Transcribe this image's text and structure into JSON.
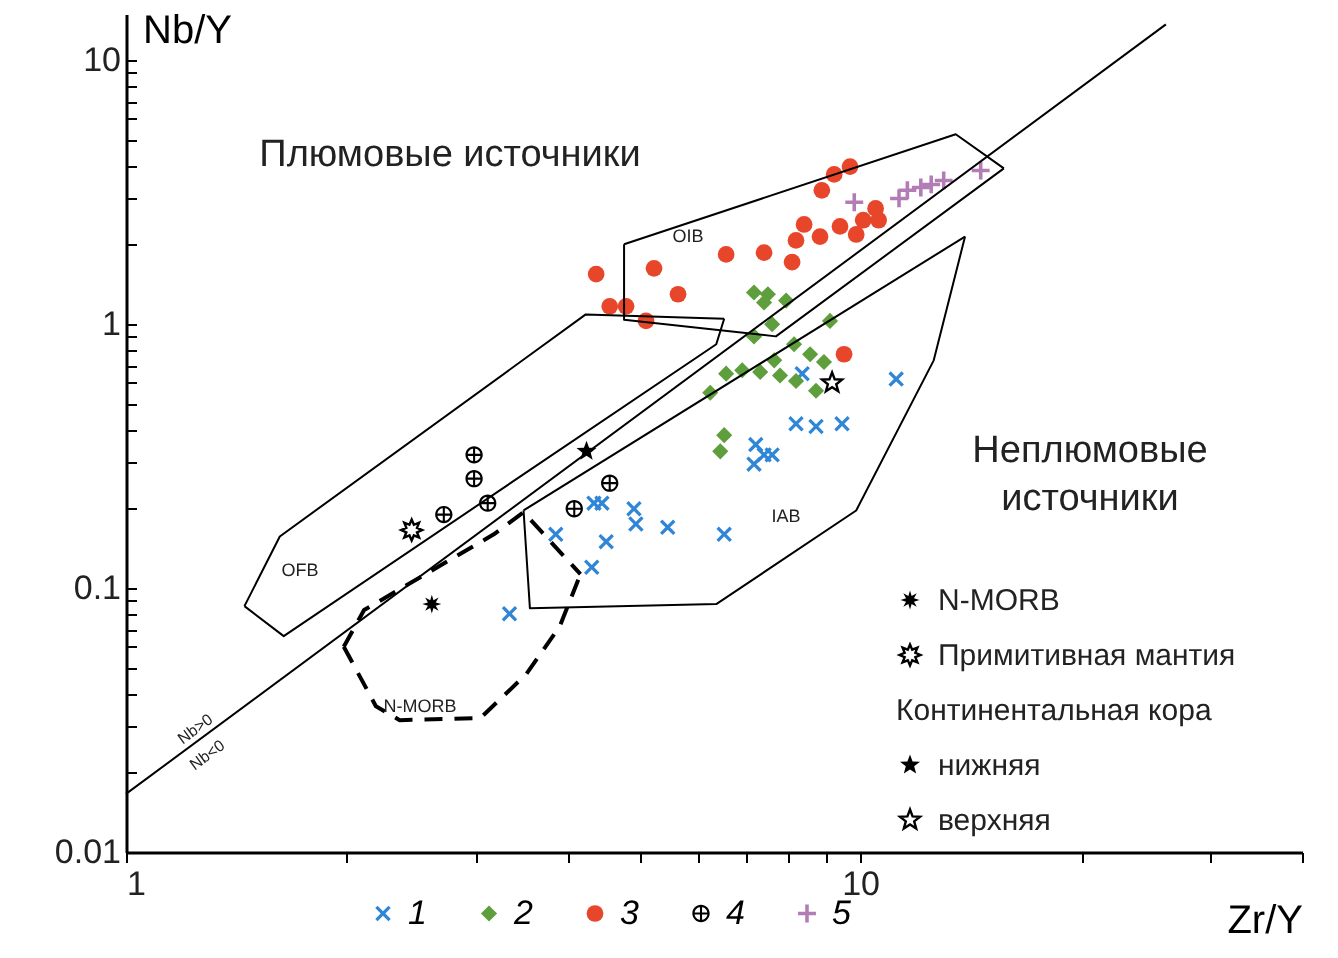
{
  "chart_data": {
    "type": "scatter",
    "xlabel": "Zr/Y",
    "ylabel": "Nb/Y",
    "log": "xy",
    "grid": false,
    "legend": "bottom",
    "xlim": [
      1,
      40
    ],
    "ylim": [
      0.01,
      15
    ],
    "xticks": [
      1,
      {
        "value": 2,
        "label": null
      },
      {
        "value": 3,
        "label": null
      },
      {
        "value": 4,
        "label": null
      },
      {
        "value": 5,
        "label": null
      },
      {
        "value": 6,
        "label": null
      },
      {
        "value": 7,
        "label": null
      },
      {
        "value": 8,
        "label": null
      },
      {
        "value": 9,
        "label": null
      },
      10,
      {
        "value": 20,
        "label": null
      },
      {
        "value": 30,
        "label": null
      },
      {
        "value": 40,
        "label": null
      }
    ],
    "yticks": [
      0.01,
      {
        "value": 0.02,
        "label": null
      },
      {
        "value": 0.03,
        "label": null
      },
      {
        "value": 0.04,
        "label": null
      },
      {
        "value": 0.05,
        "label": null
      },
      {
        "value": 0.06,
        "label": null
      },
      {
        "value": 0.07,
        "label": null
      },
      {
        "value": 0.08,
        "label": null
      },
      {
        "value": 0.09,
        "label": null
      },
      0.1,
      {
        "value": 0.2,
        "label": null
      },
      {
        "value": 0.3,
        "label": null
      },
      {
        "value": 0.4,
        "label": null
      },
      {
        "value": 0.5,
        "label": null
      },
      {
        "value": 0.6,
        "label": null
      },
      {
        "value": 0.7,
        "label": null
      },
      {
        "value": 0.8,
        "label": null
      },
      {
        "value": 0.9,
        "label": null
      },
      1,
      {
        "value": 2,
        "label": null
      },
      {
        "value": 3,
        "label": null
      },
      {
        "value": 4,
        "label": null
      },
      {
        "value": 5,
        "label": null
      },
      {
        "value": 6,
        "label": null
      },
      {
        "value": 7,
        "label": null
      },
      {
        "value": 8,
        "label": null
      },
      {
        "value": 9,
        "label": null
      },
      10
    ],
    "series": [
      {
        "type": "line",
        "color": "#000000",
        "line_style": "solid",
        "x": [
          1,
          26.1
        ],
        "values": [
          0.0166,
          13.7
        ]
      },
      {
        "type": "line",
        "color": "#000000",
        "line_style": "solid",
        "x": [
          1.45,
          1.62,
          4.23,
          6.53
        ],
        "values": [
          0.0855,
          0.157,
          1.09,
          1.05
        ]
      },
      {
        "type": "line",
        "color": "#000000",
        "line_style": "solid",
        "x": [
          1.45,
          1.64,
          6.37,
          6.53
        ],
        "values": [
          0.0855,
          0.0658,
          0.84,
          1.05
        ]
      },
      {
        "type": "line",
        "color": "#000000",
        "line_style": "solid",
        "x": [
          4.77,
          13.5,
          15.7
        ],
        "values": [
          2.01,
          5.25,
          3.9
        ]
      },
      {
        "type": "line",
        "color": "#000000",
        "line_style": "solid",
        "x": [
          4.77,
          4.77,
          7.68,
          15.7
        ],
        "values": [
          2.01,
          1.04,
          0.9,
          3.9
        ]
      },
      {
        "type": "line",
        "color": "#000000",
        "line_style": "solid",
        "x": [
          3.48,
          13.9
        ],
        "values": [
          0.197,
          2.15
        ]
      },
      {
        "type": "line",
        "color": "#000000",
        "line_style": "solid",
        "x": [
          3.48,
          3.55,
          6.37,
          9.88,
          12.6,
          13.9
        ],
        "values": [
          0.197,
          0.084,
          0.087,
          0.197,
          0.73,
          2.15
        ]
      },
      {
        "type": "line",
        "color": "#000000",
        "line_style": "dashed",
        "x": [
          1.98,
          2.11,
          3.17,
          3.48,
          4.16
        ],
        "values": [
          0.06,
          0.0826,
          0.16,
          0.194,
          0.113
        ]
      },
      {
        "type": "line",
        "color": "#000000",
        "line_style": "dashed",
        "x": [
          1.98,
          2.19,
          2.36,
          3.04,
          3.51,
          3.9,
          4.16
        ],
        "values": [
          0.06,
          0.0357,
          0.0316,
          0.0322,
          0.0472,
          0.0718,
          0.113
        ]
      },
      {
        "name": "1",
        "color": "#2f86d6",
        "marker": "cross",
        "x": [
          11.2,
          8.18,
          8.71,
          9.45,
          7.21,
          7.4,
          7.17,
          7.59,
          4.34,
          4.45,
          4.92,
          4.95,
          5.47,
          6.53,
          3.85,
          4.51,
          4.31,
          3.33,
          8.34
        ],
        "values": [
          0.62,
          0.42,
          0.41,
          0.42,
          0.35,
          0.32,
          0.295,
          0.32,
          0.21,
          0.21,
          0.2,
          0.175,
          0.17,
          0.16,
          0.16,
          0.15,
          0.12,
          0.08,
          0.65
        ]
      },
      {
        "name": "2",
        "color": "#5e9e3c",
        "marker": "diamond",
        "x": [
          7.17,
          7.49,
          7.93,
          7.4,
          7.59,
          7.17,
          9.1,
          8.13,
          8.55,
          8.93,
          7.64,
          7.31,
          6.57,
          6.91,
          7.78,
          8.18,
          8.71,
          6.25,
          6.53,
          6.45
        ],
        "values": [
          1.32,
          1.3,
          1.23,
          1.21,
          1.0,
          0.9,
          1.03,
          0.84,
          0.77,
          0.72,
          0.73,
          0.66,
          0.65,
          0.67,
          0.64,
          0.61,
          0.56,
          0.55,
          0.38,
          0.33
        ]
      },
      {
        "name": "3",
        "color": "#e8462b",
        "marker": "circle",
        "x": [
          9.69,
          9.22,
          8.87,
          10.5,
          8.39,
          10.1,
          9.39,
          8.82,
          9.88,
          8.18,
          10.6,
          6.57,
          7.4,
          8.08,
          4.37,
          5.24,
          5.65,
          4.56,
          4.8,
          5.11,
          9.51
        ],
        "values": [
          3.96,
          3.7,
          3.22,
          2.75,
          2.39,
          2.48,
          2.35,
          2.15,
          2.19,
          2.08,
          2.48,
          1.84,
          1.87,
          1.72,
          1.55,
          1.63,
          1.3,
          1.17,
          1.17,
          1.03,
          0.77
        ]
      },
      {
        "name": "4",
        "color": "#000000",
        "marker": "circle-plus",
        "x": [
          2.98,
          2.98,
          3.11,
          2.71,
          4.08,
          4.56
        ],
        "values": [
          0.32,
          0.26,
          0.21,
          0.19,
          0.2,
          0.25
        ]
      },
      {
        "name": "5",
        "color": "#b27db4",
        "marker": "plus",
        "x": [
          14.6,
          13.0,
          12.5,
          12.1,
          11.6,
          11.3,
          9.82
        ],
        "values": [
          3.83,
          3.51,
          3.39,
          3.3,
          3.22,
          3.0,
          2.9
        ]
      },
      {
        "name": "N-MORB",
        "color": "#000000",
        "marker": "asterisk",
        "x": [
          2.61
        ],
        "values": [
          0.087
        ]
      },
      {
        "name": "Примитивная мантия",
        "color": "#000000",
        "x": [
          2.45
        ],
        "values": [
          0.166
        ]
      },
      {
        "name": "нижняя",
        "color": "#000000",
        "marker": "star",
        "x": [
          4.24
        ],
        "values": [
          0.33
        ]
      },
      {
        "name": "верхняя",
        "color": "#000000",
        "marker": "star-open",
        "x": [
          9.16
        ],
        "values": [
          0.6
        ]
      }
    ],
    "annotations": [
      "Континентальная кора",
      "Плюмовые источники",
      "Неплюмовые\nисточники",
      "OFB",
      "OIB",
      "IAB",
      "N-MORB",
      "Nb>0",
      "Nb<0"
    ]
  }
}
